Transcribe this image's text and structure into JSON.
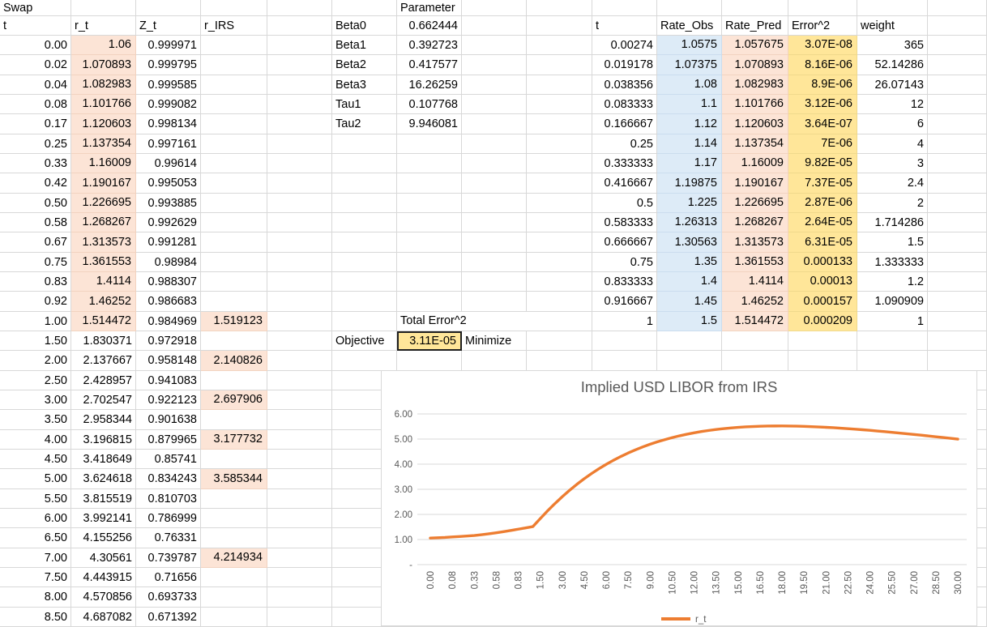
{
  "colors": {
    "fill_peach": "#FCE4D6",
    "fill_blue": "#DDEBF7",
    "fill_gold": "#FFE699",
    "gridline": "#D8D8D8",
    "accent_orange": "#ED7D31",
    "chart_text": "#595959",
    "chart_gridline": "#D9D9D9",
    "selection_border": "#1F1F1F"
  },
  "sheet": {
    "corner_label": "Swap",
    "left_table": {
      "headers": [
        "t",
        "r_t",
        "Z_t",
        "r_IRS"
      ],
      "rows": [
        [
          "0.00",
          "1.06",
          "0.999971",
          ""
        ],
        [
          "0.02",
          "1.070893",
          "0.999795",
          ""
        ],
        [
          "0.04",
          "1.082983",
          "0.999585",
          ""
        ],
        [
          "0.08",
          "1.101766",
          "0.999082",
          ""
        ],
        [
          "0.17",
          "1.120603",
          "0.998134",
          ""
        ],
        [
          "0.25",
          "1.137354",
          "0.997161",
          ""
        ],
        [
          "0.33",
          "1.16009",
          "0.99614",
          ""
        ],
        [
          "0.42",
          "1.190167",
          "0.995053",
          ""
        ],
        [
          "0.50",
          "1.226695",
          "0.993885",
          ""
        ],
        [
          "0.58",
          "1.268267",
          "0.992629",
          ""
        ],
        [
          "0.67",
          "1.313573",
          "0.991281",
          ""
        ],
        [
          "0.75",
          "1.361553",
          "0.98984",
          ""
        ],
        [
          "0.83",
          "1.4114",
          "0.988307",
          ""
        ],
        [
          "0.92",
          "1.46252",
          "0.986683",
          ""
        ],
        [
          "1.00",
          "1.514472",
          "0.984969",
          "1.519123"
        ],
        [
          "1.50",
          "1.830371",
          "0.972918",
          ""
        ],
        [
          "2.00",
          "2.137667",
          "0.958148",
          "2.140826"
        ],
        [
          "2.50",
          "2.428957",
          "0.941083",
          ""
        ],
        [
          "3.00",
          "2.702547",
          "0.922123",
          "2.697906"
        ],
        [
          "3.50",
          "2.958344",
          "0.901638",
          ""
        ],
        [
          "4.00",
          "3.196815",
          "0.879965",
          "3.177732"
        ],
        [
          "4.50",
          "3.418649",
          "0.85741",
          ""
        ],
        [
          "5.00",
          "3.624618",
          "0.834243",
          "3.585344"
        ],
        [
          "5.50",
          "3.815519",
          "0.810703",
          ""
        ],
        [
          "6.00",
          "3.992141",
          "0.786999",
          ""
        ],
        [
          "6.50",
          "4.155256",
          "0.76331",
          ""
        ],
        [
          "7.00",
          "4.30561",
          "0.739787",
          "4.214934"
        ],
        [
          "7.50",
          "4.443915",
          "0.71656",
          ""
        ],
        [
          "8.00",
          "4.570856",
          "0.693733",
          ""
        ],
        [
          "8.50",
          "4.687082",
          "0.671392",
          ""
        ]
      ]
    },
    "parameters": {
      "header": "Parameter",
      "names": [
        "Beta0",
        "Beta1",
        "Beta2",
        "Beta3",
        "Tau1",
        "Tau2"
      ],
      "values": [
        "0.662444",
        "0.392723",
        "0.417577",
        "16.26259",
        "0.107768",
        "9.946081"
      ]
    },
    "objective": {
      "total_label": "Total Error^2",
      "label": "Objective",
      "value": "3.11E-05",
      "direction": "Minimize"
    },
    "right_table": {
      "headers": [
        "t",
        "Rate_Obs",
        "Rate_Pred",
        "Error^2",
        "weight"
      ],
      "rows": [
        [
          "0.00274",
          "1.0575",
          "1.057675",
          "3.07E-08",
          "365"
        ],
        [
          "0.019178",
          "1.07375",
          "1.070893",
          "8.16E-06",
          "52.14286"
        ],
        [
          "0.038356",
          "1.08",
          "1.082983",
          "8.9E-06",
          "26.07143"
        ],
        [
          "0.083333",
          "1.1",
          "1.101766",
          "3.12E-06",
          "12"
        ],
        [
          "0.166667",
          "1.12",
          "1.120603",
          "3.64E-07",
          "6"
        ],
        [
          "0.25",
          "1.14",
          "1.137354",
          "7E-06",
          "4"
        ],
        [
          "0.333333",
          "1.17",
          "1.16009",
          "9.82E-05",
          "3"
        ],
        [
          "0.416667",
          "1.19875",
          "1.190167",
          "7.37E-05",
          "2.4"
        ],
        [
          "0.5",
          "1.225",
          "1.226695",
          "2.87E-06",
          "2"
        ],
        [
          "0.583333",
          "1.26313",
          "1.268267",
          "2.64E-05",
          "1.714286"
        ],
        [
          "0.666667",
          "1.30563",
          "1.313573",
          "6.31E-05",
          "1.5"
        ],
        [
          "0.75",
          "1.35",
          "1.361553",
          "0.000133",
          "1.333333"
        ],
        [
          "0.833333",
          "1.4",
          "1.4114",
          "0.00013",
          "1.2"
        ],
        [
          "0.916667",
          "1.45",
          "1.46252",
          "0.000157",
          "1.090909"
        ],
        [
          "1",
          "1.5",
          "1.514472",
          "0.000209",
          "1"
        ]
      ]
    }
  },
  "chart_data": {
    "type": "line",
    "title": "Implied USD LIBOR from IRS",
    "legend_position": "bottom",
    "x": [
      0.0,
      0.02,
      0.04,
      0.08,
      0.17,
      0.25,
      0.33,
      0.42,
      0.5,
      0.58,
      0.67,
      0.75,
      0.83,
      0.92,
      1.0,
      1.5,
      2.0,
      2.5,
      3.0,
      3.5,
      4.0,
      4.5,
      5.0,
      5.5,
      6.0,
      6.5,
      7.0,
      7.5,
      8.0,
      8.5,
      9.0,
      9.5,
      10.0,
      10.5,
      11.0,
      11.5,
      12.0,
      12.5,
      13.0,
      13.5,
      14.0,
      14.5,
      15.0,
      15.5,
      16.0,
      16.5,
      17.0,
      17.5,
      18.0,
      18.5,
      19.0,
      19.5,
      20.0,
      20.5,
      21.0,
      21.5,
      22.0,
      22.5,
      23.0,
      23.5,
      24.0,
      24.5,
      25.0,
      25.5,
      26.0,
      26.5,
      27.0,
      27.5,
      28.0,
      28.5,
      29.0,
      29.5,
      30.0
    ],
    "series": [
      {
        "name": "r_t",
        "color": "#ED7D31",
        "values": [
          1.06,
          1.070893,
          1.082983,
          1.101766,
          1.120603,
          1.137354,
          1.16009,
          1.190167,
          1.226695,
          1.268267,
          1.313573,
          1.361553,
          1.4114,
          1.46252,
          1.514472,
          1.830371,
          2.137667,
          2.428957,
          2.702547,
          2.958344,
          3.196815,
          3.418649,
          3.624618,
          3.815519,
          3.992141,
          4.155256,
          4.30561,
          4.443915,
          4.570856,
          4.687082,
          4.794,
          4.89,
          4.977,
          5.057,
          5.128,
          5.192,
          5.249,
          5.299,
          5.343,
          5.382,
          5.415,
          5.443,
          5.466,
          5.485,
          5.499,
          5.51,
          5.517,
          5.52,
          5.521,
          5.518,
          5.513,
          5.505,
          5.495,
          5.483,
          5.468,
          5.452,
          5.434,
          5.414,
          5.393,
          5.371,
          5.347,
          5.322,
          5.296,
          5.269,
          5.241,
          5.213,
          5.184,
          5.154,
          5.123,
          5.092,
          5.061,
          5.029,
          4.996
        ]
      }
    ],
    "x_tick_labels": [
      "0.00",
      "0.08",
      "0.33",
      "0.58",
      "0.83",
      "1.50",
      "3.00",
      "4.50",
      "6.00",
      "7.50",
      "9.00",
      "10.50",
      "12.00",
      "13.50",
      "15.00",
      "16.50",
      "18.00",
      "19.50",
      "21.00",
      "22.50",
      "24.00",
      "25.50",
      "27.00",
      "28.50",
      "30.00"
    ],
    "x_tick_every": 3,
    "y_tick_labels": [
      "6.00",
      "5.00",
      "4.00",
      "3.00",
      "2.00",
      "1.00",
      "-"
    ],
    "y_tick_values": [
      6,
      5,
      4,
      3,
      2,
      1,
      0
    ],
    "ylim": [
      0,
      6
    ],
    "grid": "horizontal"
  }
}
